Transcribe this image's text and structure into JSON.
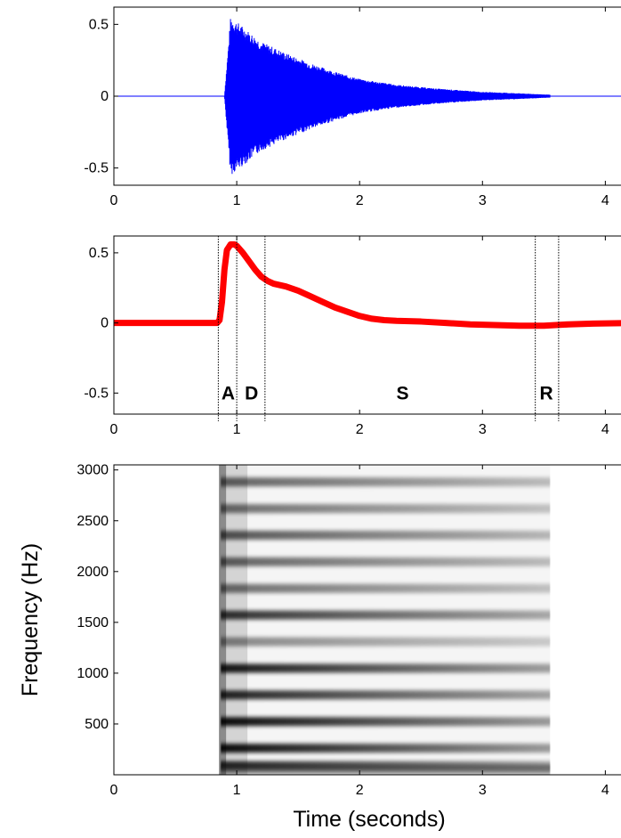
{
  "chart_data": [
    {
      "type": "line",
      "xlim": [
        0,
        4.2
      ],
      "ylim": [
        -0.62,
        0.62
      ],
      "xticks": [
        0,
        1,
        2,
        3,
        4
      ],
      "yticks": [
        -0.5,
        0,
        0.5
      ],
      "xtick_labels": [
        "0",
        "1",
        "2",
        "3",
        "4"
      ],
      "ytick_labels": [
        "-0.5",
        "0",
        "0.5"
      ],
      "grid": false,
      "color": "#0000ff",
      "series": [
        {
          "signal": "decaying oscillation",
          "onset": 0.9,
          "end": 3.55,
          "envelope": {
            "x": [
              0.9,
              0.95,
              1.0,
              1.1,
              1.2,
              1.4,
              1.6,
              1.8,
              2.0,
              2.3,
              2.6,
              3.0,
              3.3,
              3.55
            ],
            "y": [
              0.0,
              0.55,
              0.52,
              0.45,
              0.38,
              0.3,
              0.23,
              0.17,
              0.12,
              0.08,
              0.055,
              0.03,
              0.02,
              0.01
            ]
          }
        }
      ]
    },
    {
      "type": "line",
      "xlim": [
        0,
        4.2
      ],
      "ylim": [
        -0.65,
        0.62
      ],
      "xticks": [
        0,
        1,
        2,
        3,
        4
      ],
      "yticks": [
        -0.5,
        0,
        0.5
      ],
      "xtick_labels": [
        "0",
        "1",
        "2",
        "3",
        "4"
      ],
      "ytick_labels": [
        "-0.5",
        "0",
        "0.5"
      ],
      "grid": false,
      "color": "#ff0000",
      "series": [
        {
          "x": [
            0,
            0.84,
            0.86,
            0.88,
            0.9,
            0.92,
            0.95,
            0.98,
            1.0,
            1.05,
            1.1,
            1.15,
            1.2,
            1.25,
            1.3,
            1.4,
            1.5,
            1.6,
            1.7,
            1.8,
            1.9,
            2.0,
            2.1,
            2.2,
            2.3,
            2.5,
            2.7,
            2.9,
            3.1,
            3.3,
            3.5,
            3.7,
            3.9,
            4.2
          ],
          "y": [
            0,
            0,
            0.02,
            0.15,
            0.38,
            0.52,
            0.56,
            0.56,
            0.55,
            0.5,
            0.44,
            0.38,
            0.33,
            0.3,
            0.28,
            0.26,
            0.23,
            0.19,
            0.15,
            0.11,
            0.08,
            0.05,
            0.03,
            0.02,
            0.015,
            0.01,
            0.0,
            -0.01,
            -0.015,
            -0.02,
            -0.02,
            -0.01,
            -0.005,
            0
          ]
        }
      ],
      "phase_boundaries": [
        0.85,
        1.0,
        1.23,
        3.43,
        3.62
      ],
      "phase_labels": [
        {
          "text": "A",
          "x": 0.93
        },
        {
          "text": "D",
          "x": 1.12
        },
        {
          "text": "S",
          "x": 2.35
        },
        {
          "text": "R",
          "x": 3.52
        }
      ]
    },
    {
      "type": "heatmap",
      "xlim": [
        0,
        4.2
      ],
      "ylim": [
        0,
        3050
      ],
      "xticks": [
        0,
        1,
        2,
        3,
        4
      ],
      "yticks": [
        500,
        1000,
        1500,
        2000,
        2500,
        3000
      ],
      "xtick_labels": [
        "0",
        "1",
        "2",
        "3",
        "4"
      ],
      "ytick_labels": [
        "500",
        "1000",
        "1500",
        "2000",
        "2500",
        "3000"
      ],
      "xlabel": "Time  (seconds)",
      "ylabel": "Frequency  (Hz)",
      "grid": false,
      "time_span": [
        0.87,
        3.55
      ],
      "harmonics": [
        {
          "freq": 90,
          "strength": 0.85
        },
        {
          "freq": 262,
          "strength": 0.95
        },
        {
          "freq": 524,
          "strength": 0.95
        },
        {
          "freq": 786,
          "strength": 0.85
        },
        {
          "freq": 1048,
          "strength": 0.9
        },
        {
          "freq": 1310,
          "strength": 0.45
        },
        {
          "freq": 1572,
          "strength": 0.8
        },
        {
          "freq": 1834,
          "strength": 0.55
        },
        {
          "freq": 2096,
          "strength": 0.6
        },
        {
          "freq": 2358,
          "strength": 0.65
        },
        {
          "freq": 2620,
          "strength": 0.55
        },
        {
          "freq": 2882,
          "strength": 0.6
        }
      ]
    }
  ]
}
